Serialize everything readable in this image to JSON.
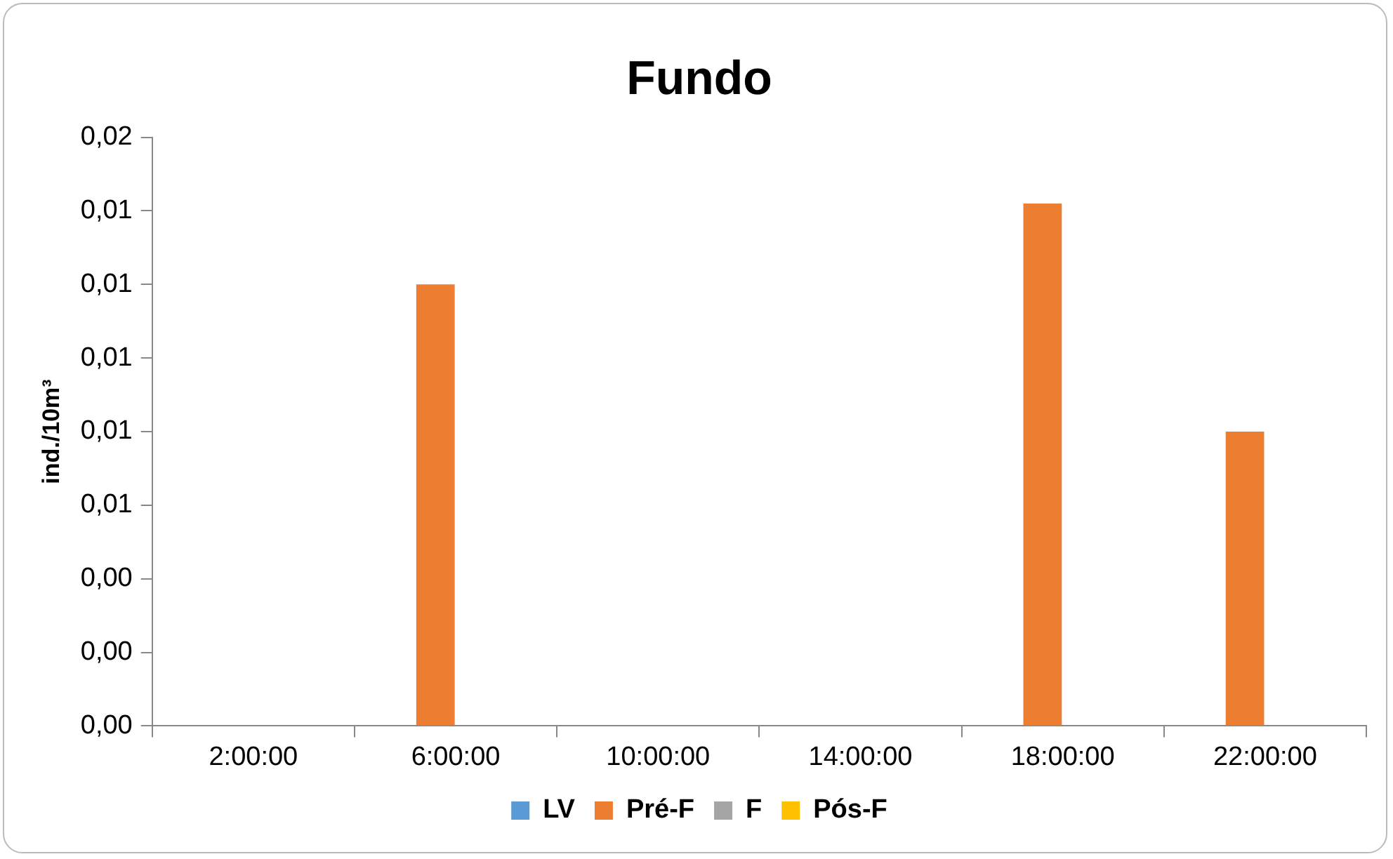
{
  "chart_data": {
    "type": "bar",
    "title": "Fundo",
    "ylabel": "ind./10m³",
    "categories": [
      "2:00:00",
      "6:00:00",
      "10:00:00",
      "14:00:00",
      "18:00:00",
      "22:00:00"
    ],
    "series": [
      {
        "name": "LV",
        "color": "#5b9bd5",
        "values": [
          0,
          0,
          0,
          0,
          0,
          0
        ]
      },
      {
        "name": "Pré-F",
        "color": "#ed7d31",
        "values": [
          0,
          0.012,
          0,
          0,
          0.0142,
          0.008
        ]
      },
      {
        "name": "F",
        "color": "#a5a5a5",
        "values": [
          0,
          0,
          0,
          0,
          0,
          0
        ]
      },
      {
        "name": "Pós-F",
        "color": "#ffc000",
        "values": [
          0,
          0,
          0,
          0,
          0,
          0
        ]
      }
    ],
    "ylim": [
      0,
      0.016
    ],
    "yticks": [
      {
        "value": 0,
        "label": "0,00"
      },
      {
        "value": 0.002,
        "label": "0,00"
      },
      {
        "value": 0.004,
        "label": "0,00"
      },
      {
        "value": 0.006,
        "label": "0,01"
      },
      {
        "value": 0.008,
        "label": "0,01"
      },
      {
        "value": 0.01,
        "label": "0,01"
      },
      {
        "value": 0.012,
        "label": "0,01"
      },
      {
        "value": 0.014,
        "label": "0,01"
      },
      {
        "value": 0.016,
        "label": "0,02"
      }
    ],
    "grid": false,
    "legend": "bottom"
  }
}
